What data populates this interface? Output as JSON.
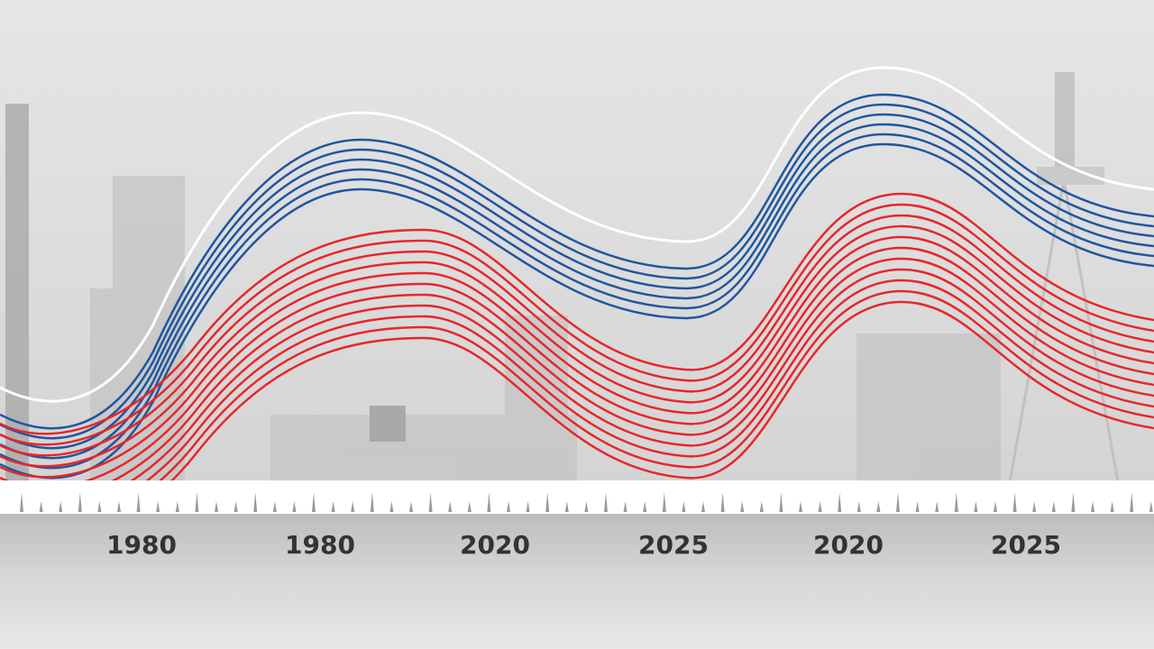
{
  "timeline": {
    "labels": [
      "1980",
      "1980",
      "2020",
      "2025",
      "2020",
      "2025"
    ]
  }
}
